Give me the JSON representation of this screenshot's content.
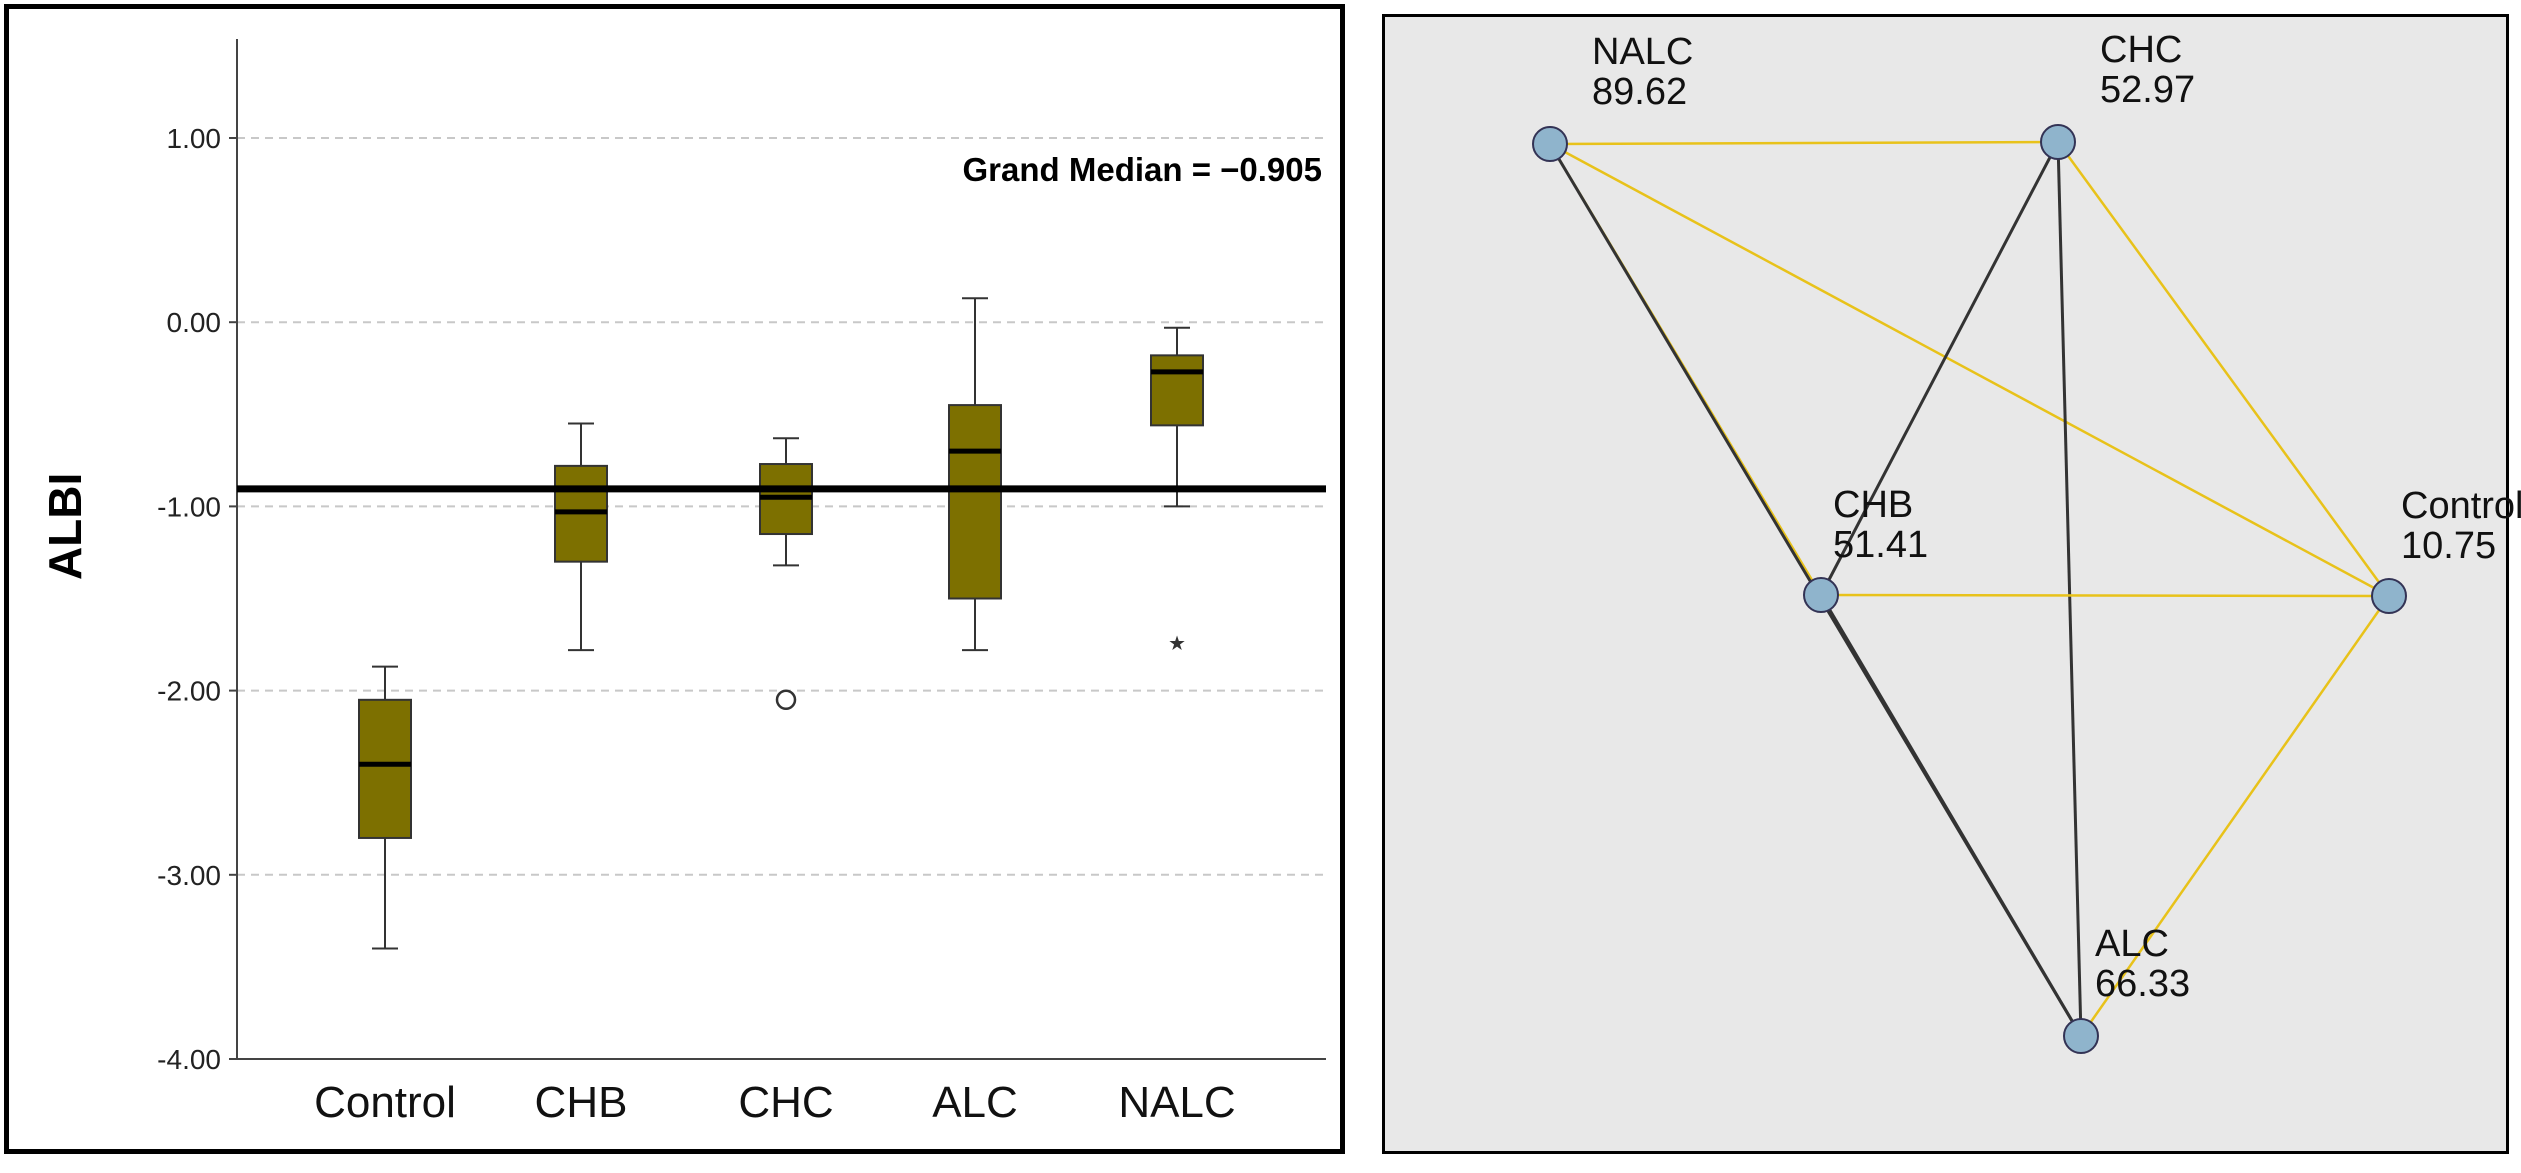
{
  "chart_data": [
    {
      "type": "boxplot",
      "ylabel": "ALBI",
      "ylim": [
        -4.0,
        1.6
      ],
      "yticks": [
        "1.00",
        "0.00",
        "-1.00",
        "-2.00",
        "-3.00",
        "-4.00"
      ],
      "ytick_values": [
        1,
        0,
        -1,
        -2,
        -3,
        -4
      ],
      "grid": "dashed-horizontal",
      "box_color": "#7d7000",
      "categories": [
        "Control",
        "CHB",
        "CHC",
        "ALC",
        "NALC"
      ],
      "boxes": [
        {
          "category": "Control",
          "whisker_low": -3.4,
          "q1": -2.8,
          "median": -2.4,
          "q3": -2.05,
          "whisker_high": -1.87,
          "outliers": [],
          "extremes": []
        },
        {
          "category": "CHB",
          "whisker_low": -1.78,
          "q1": -1.3,
          "median": -1.03,
          "q3": -0.78,
          "whisker_high": -0.55,
          "outliers": [],
          "extremes": []
        },
        {
          "category": "CHC",
          "whisker_low": -1.32,
          "q1": -1.15,
          "median": -0.95,
          "q3": -0.77,
          "whisker_high": -0.63,
          "outliers": [
            -2.05
          ],
          "extremes": []
        },
        {
          "category": "ALC",
          "whisker_low": -1.78,
          "q1": -1.5,
          "median": -0.7,
          "q3": -0.45,
          "whisker_high": 0.13,
          "outliers": [],
          "extremes": []
        },
        {
          "category": "NALC",
          "whisker_low": -1.0,
          "q1": -0.56,
          "median": -0.27,
          "q3": -0.18,
          "whisker_high": -0.03,
          "outliers": [],
          "extremes": [
            -1.72
          ]
        }
      ],
      "grand_median": -0.905,
      "grand_median_label": "Grand Median = −0.905"
    },
    {
      "type": "network",
      "edge_colors": {
        "significant": "#e8c21a",
        "non_significant": "#333333"
      },
      "node_color": "#8fb4cc",
      "nodes": [
        {
          "id": "NALC",
          "label": "NALC",
          "value": "89.62"
        },
        {
          "id": "CHC",
          "label": "CHC",
          "value": "52.97"
        },
        {
          "id": "CHB",
          "label": "CHB",
          "value": "51.41"
        },
        {
          "id": "Control",
          "label": "Control",
          "value": "10.75"
        },
        {
          "id": "ALC",
          "label": "ALC",
          "value": "66.33"
        }
      ],
      "edges": [
        {
          "from": "NALC",
          "to": "CHC",
          "type": "significant"
        },
        {
          "from": "NALC",
          "to": "CHB",
          "type": "significant"
        },
        {
          "from": "NALC",
          "to": "Control",
          "type": "significant"
        },
        {
          "from": "NALC",
          "to": "ALC",
          "type": "non_significant"
        },
        {
          "from": "CHC",
          "to": "CHB",
          "type": "non_significant"
        },
        {
          "from": "CHC",
          "to": "Control",
          "type": "significant"
        },
        {
          "from": "CHC",
          "to": "ALC",
          "type": "non_significant"
        },
        {
          "from": "CHB",
          "to": "Control",
          "type": "significant"
        },
        {
          "from": "CHB",
          "to": "ALC",
          "type": "non_significant"
        },
        {
          "from": "Control",
          "to": "ALC",
          "type": "significant"
        }
      ]
    }
  ]
}
